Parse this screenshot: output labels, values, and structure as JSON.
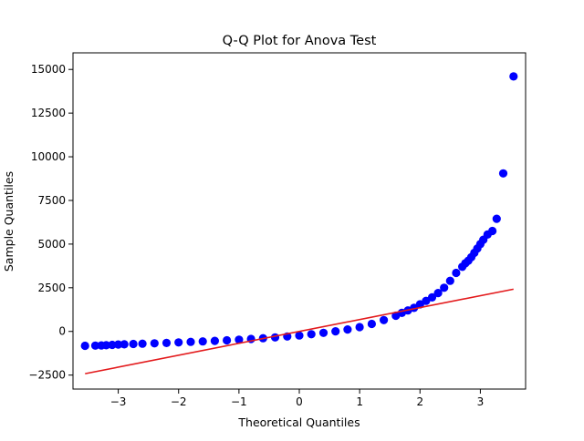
{
  "chart_data": {
    "type": "scatter",
    "title": "Q-Q Plot for Anova Test",
    "xlabel": "Theoretical Quantiles",
    "ylabel": "Sample Quantiles",
    "xlim": [
      -3.75,
      3.75
    ],
    "ylim": [
      -3300,
      15950
    ],
    "x_ticks": [
      -3,
      -2,
      -1,
      0,
      1,
      2,
      3
    ],
    "x_tick_labels": [
      "−3",
      "−2",
      "−1",
      "0",
      "1",
      "2",
      "3"
    ],
    "y_ticks": [
      -2500,
      0,
      2500,
      5000,
      7500,
      10000,
      12500,
      15000
    ],
    "y_tick_labels": [
      "−2500",
      "0",
      "2500",
      "5000",
      "7500",
      "10000",
      "12500",
      "15000"
    ],
    "grid": false,
    "legend": "none",
    "series": [
      {
        "kind": "points",
        "color": "#0000ff",
        "x": [
          -3.55,
          -3.38,
          -3.28,
          -3.2,
          -3.1,
          -3.0,
          -2.9,
          -2.75,
          -2.6,
          -2.4,
          -2.2,
          -2.0,
          -1.8,
          -1.6,
          -1.4,
          -1.2,
          -1.0,
          -0.8,
          -0.6,
          -0.4,
          -0.2,
          0.0,
          0.2,
          0.4,
          0.6,
          0.8,
          1.0,
          1.2,
          1.4,
          1.6,
          1.7,
          1.8,
          1.9,
          2.0,
          2.1,
          2.2,
          2.3,
          2.4,
          2.5,
          2.6,
          2.7,
          2.75,
          2.8,
          2.85,
          2.9,
          2.95,
          3.0,
          3.05,
          3.12,
          3.2,
          3.27,
          3.38,
          3.55
        ],
        "y": [
          -820,
          -810,
          -800,
          -790,
          -770,
          -750,
          -740,
          -720,
          -700,
          -680,
          -660,
          -630,
          -600,
          -570,
          -540,
          -510,
          -470,
          -430,
          -390,
          -340,
          -290,
          -230,
          -160,
          -80,
          10,
          110,
          250,
          430,
          650,
          900,
          1060,
          1200,
          1350,
          1550,
          1750,
          1950,
          2200,
          2500,
          2900,
          3350,
          3700,
          3900,
          4050,
          4250,
          4500,
          4750,
          5000,
          5250,
          5550,
          5750,
          6450,
          9050,
          14600
        ]
      },
      {
        "kind": "line",
        "color": "#e31a1c",
        "x": [
          -3.55,
          3.55
        ],
        "y": [
          -2420,
          2420
        ]
      }
    ]
  }
}
